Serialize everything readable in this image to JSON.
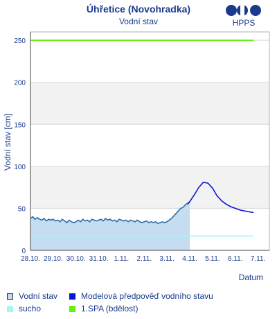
{
  "header": {
    "title": "Úhřetice (Novohradka)",
    "subtitle": "Vodní stav",
    "logo_text": "HPPS"
  },
  "colors": {
    "observed_line": "#2a6fa8",
    "observed_fill": "#c6dcf0",
    "forecast": "#0a14d8",
    "drought": "#a8f5f5",
    "spa1": "#66ee11",
    "band": "#f2f2f2",
    "grid": "#d8d8d8",
    "text": "#1a3a8c"
  },
  "chart_data": {
    "type": "line",
    "title": "Úhřetice (Novohradka)",
    "subtitle": "Vodní stav",
    "ylabel": "Vodní stav [cm]",
    "xlabel": "Datum",
    "ylim": [
      0,
      260
    ],
    "yticks": [
      0,
      50,
      100,
      150,
      200,
      250
    ],
    "xlim": [
      0,
      10.5
    ],
    "xtick_labels": [
      "28.10.",
      "29.10.",
      "30.10.",
      "31.10.",
      "1.11.",
      "2.11.",
      "3.11.",
      "4.11.",
      "5.11.",
      "6.11.",
      "7.11."
    ],
    "grid": true,
    "shaded_bands": [
      [
        50,
        100
      ],
      [
        150,
        200
      ]
    ],
    "series": [
      {
        "name": "Vodní stav",
        "style": "area",
        "x": [
          0,
          0.1,
          0.2,
          0.3,
          0.4,
          0.5,
          0.6,
          0.7,
          0.8,
          0.9,
          1.0,
          1.1,
          1.2,
          1.3,
          1.4,
          1.5,
          1.6,
          1.7,
          1.8,
          1.9,
          2.0,
          2.1,
          2.2,
          2.3,
          2.4,
          2.5,
          2.6,
          2.7,
          2.8,
          2.9,
          3.0,
          3.1,
          3.2,
          3.3,
          3.4,
          3.5,
          3.6,
          3.7,
          3.8,
          3.9,
          4.0,
          4.1,
          4.2,
          4.3,
          4.4,
          4.5,
          4.6,
          4.7,
          4.8,
          4.9,
          5.0,
          5.1,
          5.2,
          5.3,
          5.4,
          5.5,
          5.6,
          5.7,
          5.8,
          5.9,
          6.0,
          6.1,
          6.2,
          6.3,
          6.4,
          6.5,
          6.6,
          6.7,
          6.8,
          6.9,
          7.0
        ],
        "values": [
          38,
          40,
          37,
          39,
          37,
          36,
          38,
          35,
          37,
          36,
          37,
          35,
          36,
          34,
          37,
          35,
          33,
          36,
          34,
          33,
          34,
          36,
          34,
          37,
          35,
          36,
          34,
          37,
          36,
          35,
          36,
          37,
          35,
          38,
          36,
          37,
          35,
          36,
          34,
          37,
          36,
          35,
          36,
          34,
          36,
          35,
          34,
          36,
          34,
          33,
          34,
          35,
          33,
          34,
          33,
          34,
          32,
          33,
          34,
          33,
          34,
          36,
          38,
          41,
          44,
          47,
          50,
          51,
          54,
          56,
          57
        ]
      },
      {
        "name": "Modelová předpověď vodního stavu",
        "style": "line",
        "x": [
          6.9,
          7.0,
          7.2,
          7.4,
          7.6,
          7.8,
          8.0,
          8.2,
          8.4,
          8.6,
          8.8,
          9.0,
          9.2,
          9.4,
          9.6,
          9.8
        ],
        "values": [
          55,
          58,
          66,
          75,
          81,
          80,
          74,
          65,
          59,
          55,
          52,
          50,
          48,
          47,
          46,
          45
        ]
      },
      {
        "name": "sucho",
        "style": "line",
        "x": [
          0,
          9.8
        ],
        "values": [
          17,
          17
        ]
      },
      {
        "name": "1.SPA (bdělost)",
        "style": "line",
        "x": [
          0,
          9.8
        ],
        "values": [
          250,
          250
        ]
      }
    ]
  },
  "legend": [
    {
      "label": "Vodní stav",
      "key": "observed"
    },
    {
      "label": "Modelová předpověď vodního stavu",
      "key": "forecast"
    },
    {
      "label": "sucho",
      "key": "drought"
    },
    {
      "label": "1.SPA (bdělost)",
      "key": "spa1"
    }
  ]
}
